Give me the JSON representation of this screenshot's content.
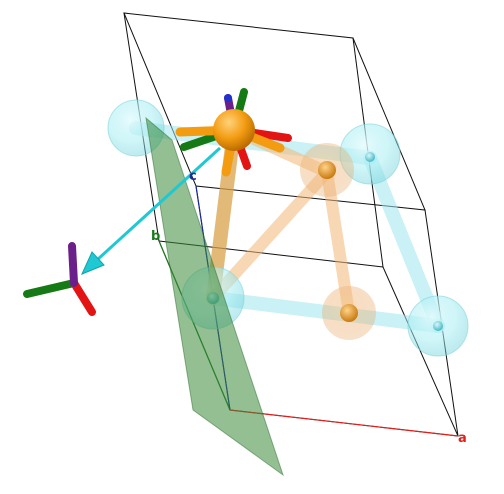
{
  "viewer": {
    "axes": {
      "a": {
        "label": "a",
        "color": "#e0201c"
      },
      "b": {
        "label": "b",
        "color": "#1a7a1a"
      },
      "c": {
        "label": "c",
        "color": "#1a2a9a"
      }
    },
    "colors": {
      "cell_edges": "#111111",
      "plane": "#3a8a3a",
      "cyan_atom": "#8fe4ec",
      "orange_atom": "#f39c12",
      "arrow": "#1fc8d2",
      "gizmo_red": "#e31414",
      "gizmo_green": "#157a15",
      "gizmo_purple": "#6a1f8a"
    },
    "icons": [
      "rotation-gizmo-icon",
      "direction-arrow-icon"
    ]
  }
}
